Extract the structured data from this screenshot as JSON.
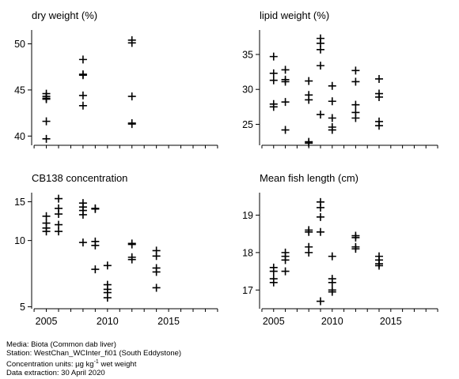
{
  "chart_data": [
    {
      "type": "scatter",
      "title": "dry weight (%)",
      "ylim": [
        39,
        51.5
      ],
      "yticks": [
        40,
        45,
        50
      ],
      "points": [
        [
          2005,
          44.0
        ],
        [
          2005,
          44.3
        ],
        [
          2005,
          44.6
        ],
        [
          2005,
          41.6
        ],
        [
          2005,
          39.7
        ],
        [
          2005,
          44.1
        ],
        [
          2008,
          48.3
        ],
        [
          2008,
          46.6
        ],
        [
          2008,
          46.7
        ],
        [
          2008,
          44.4
        ],
        [
          2008,
          43.3
        ],
        [
          2012,
          50.4
        ],
        [
          2012,
          50.1
        ],
        [
          2012,
          44.3
        ],
        [
          2012,
          41.3
        ],
        [
          2012,
          41.4
        ]
      ]
    },
    {
      "type": "scatter",
      "title": "lipid weight (%)",
      "ylim": [
        22,
        38.5
      ],
      "yticks": [
        25,
        30,
        35
      ],
      "points": [
        [
          2005,
          34.7
        ],
        [
          2005,
          32.3
        ],
        [
          2005,
          31.3
        ],
        [
          2005,
          27.9
        ],
        [
          2005,
          27.5
        ],
        [
          2006,
          32.8
        ],
        [
          2006,
          31.4
        ],
        [
          2006,
          31.1
        ],
        [
          2006,
          28.2
        ],
        [
          2006,
          24.2
        ],
        [
          2008,
          31.2
        ],
        [
          2008,
          29.2
        ],
        [
          2008,
          28.5
        ],
        [
          2008,
          22.5
        ],
        [
          2008,
          22.3
        ],
        [
          2009,
          37.3
        ],
        [
          2009,
          36.6
        ],
        [
          2009,
          35.7
        ],
        [
          2009,
          33.4
        ],
        [
          2009,
          26.4
        ],
        [
          2010,
          30.5
        ],
        [
          2010,
          28.3
        ],
        [
          2010,
          25.9
        ],
        [
          2010,
          24.6
        ],
        [
          2010,
          24.2
        ],
        [
          2012,
          32.7
        ],
        [
          2012,
          31.1
        ],
        [
          2012,
          27.8
        ],
        [
          2012,
          26.7
        ],
        [
          2012,
          25.9
        ],
        [
          2014,
          31.5
        ],
        [
          2014,
          29.4
        ],
        [
          2014,
          28.9
        ],
        [
          2014,
          25.4
        ],
        [
          2014,
          24.8
        ]
      ]
    },
    {
      "type": "scatter",
      "title": "CB138 concentration",
      "yscale": "log",
      "ylim": [
        4.9,
        16.5
      ],
      "yticks": [
        5,
        10,
        15
      ],
      "points": [
        [
          2005,
          12.9
        ],
        [
          2005,
          12.0
        ],
        [
          2005,
          11.4
        ],
        [
          2005,
          11.0
        ],
        [
          2006,
          15.5
        ],
        [
          2006,
          14.0
        ],
        [
          2006,
          13.2
        ],
        [
          2006,
          11.8
        ],
        [
          2006,
          11.0
        ],
        [
          2008,
          14.8
        ],
        [
          2008,
          14.2
        ],
        [
          2008,
          13.7
        ],
        [
          2008,
          13.1
        ],
        [
          2008,
          9.8
        ],
        [
          2009,
          14.0
        ],
        [
          2009,
          13.9
        ],
        [
          2009,
          9.9
        ],
        [
          2009,
          9.5
        ],
        [
          2009,
          7.4
        ],
        [
          2010,
          7.7
        ],
        [
          2010,
          6.3
        ],
        [
          2010,
          6.0
        ],
        [
          2010,
          5.8
        ],
        [
          2010,
          5.5
        ],
        [
          2012,
          9.7
        ],
        [
          2012,
          9.6
        ],
        [
          2012,
          8.4
        ],
        [
          2012,
          8.2
        ],
        [
          2014,
          9.0
        ],
        [
          2014,
          8.5
        ],
        [
          2014,
          7.5
        ],
        [
          2014,
          7.2
        ],
        [
          2014,
          6.1
        ]
      ]
    },
    {
      "type": "scatter",
      "title": "Mean fish length (cm)",
      "ylim": [
        16.5,
        19.6
      ],
      "yticks": [
        17,
        18,
        19
      ],
      "points": [
        [
          2005,
          17.6
        ],
        [
          2005,
          17.5
        ],
        [
          2005,
          17.3
        ],
        [
          2005,
          17.2
        ],
        [
          2006,
          18.0
        ],
        [
          2006,
          17.9
        ],
        [
          2006,
          17.8
        ],
        [
          2006,
          17.5
        ],
        [
          2008,
          18.6
        ],
        [
          2008,
          18.55
        ],
        [
          2008,
          18.15
        ],
        [
          2008,
          18.0
        ],
        [
          2009,
          19.35
        ],
        [
          2009,
          19.2
        ],
        [
          2009,
          18.95
        ],
        [
          2009,
          18.55
        ],
        [
          2009,
          16.7
        ],
        [
          2010,
          17.9
        ],
        [
          2010,
          17.3
        ],
        [
          2010,
          17.2
        ],
        [
          2010,
          17.0
        ],
        [
          2010,
          16.95
        ],
        [
          2012,
          18.45
        ],
        [
          2012,
          18.4
        ],
        [
          2012,
          18.15
        ],
        [
          2012,
          18.1
        ],
        [
          2014,
          17.9
        ],
        [
          2014,
          17.8
        ],
        [
          2014,
          17.7
        ],
        [
          2014,
          17.65
        ]
      ]
    }
  ],
  "xaxis": {
    "xlim": [
      2003.8,
      2019.2
    ],
    "ticks": [
      2005,
      2010,
      2015
    ]
  },
  "footer": {
    "media": "Media: Biota (Common dab liver)",
    "station": "Station: WestChan_WCInter_fi01 (South Eddystone)",
    "units_prefix": "Concentration units:  µg kg",
    "units_exp": "-1",
    "units_suffix": " wet weight",
    "extraction": "Data extraction: 30 April 2020"
  }
}
